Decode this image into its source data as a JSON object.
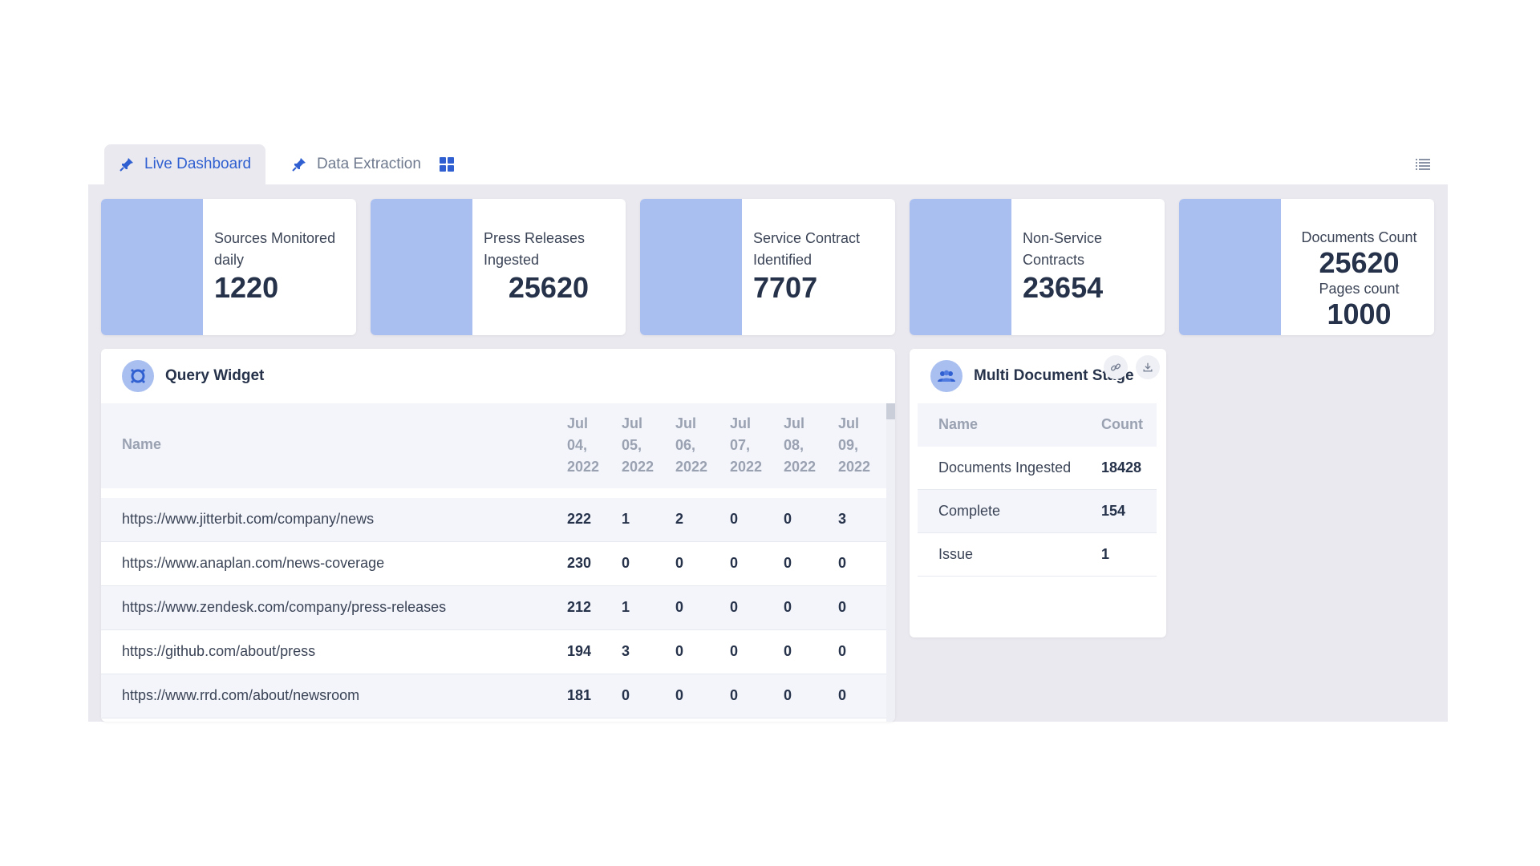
{
  "tabs": {
    "live_dashboard": "Live Dashboard",
    "data_extraction": "Data Extraction"
  },
  "kpis": [
    {
      "label": "Sources Monitored daily",
      "value": "1220"
    },
    {
      "label": "Press Releases Ingested",
      "value": "25620"
    },
    {
      "label": "Service Contract Identified",
      "value": "7707"
    },
    {
      "label": "Non-Service Contracts",
      "value": "23654"
    },
    {
      "label": "Documents Count",
      "value": "25620",
      "label2": "Pages count",
      "value2": "1000"
    }
  ],
  "query_widget": {
    "title": "Query Widget",
    "columns": [
      "Name",
      "Jul 04, 2022",
      "Jul 05, 2022",
      "Jul 06, 2022",
      "Jul 07, 2022",
      "Jul 08, 2022",
      "Jul 09, 2022"
    ],
    "rows": [
      [
        "https://www.jitterbit.com/company/news",
        "222",
        "1",
        "2",
        "0",
        "0",
        "3"
      ],
      [
        "https://www.anaplan.com/news-coverage",
        "230",
        "0",
        "0",
        "0",
        "0",
        "0"
      ],
      [
        "https://www.zendesk.com/company/press-releases",
        "212",
        "1",
        "0",
        "0",
        "0",
        "0"
      ],
      [
        "https://github.com/about/press",
        "194",
        "3",
        "0",
        "0",
        "0",
        "0"
      ],
      [
        "https://www.rrd.com/about/newsroom",
        "181",
        "0",
        "0",
        "0",
        "0",
        "0"
      ]
    ]
  },
  "multi_document": {
    "title": "Multi Document Stage",
    "columns": [
      "Name",
      "Count"
    ],
    "rows": [
      [
        "Documents Ingested",
        "18428"
      ],
      [
        "Complete",
        "154"
      ],
      [
        "Issue",
        "1"
      ]
    ]
  },
  "colors": {
    "accent": "#2f5fd0",
    "kpi_swatch": "#a9bff0",
    "board_bg": "#e9e9ef"
  }
}
